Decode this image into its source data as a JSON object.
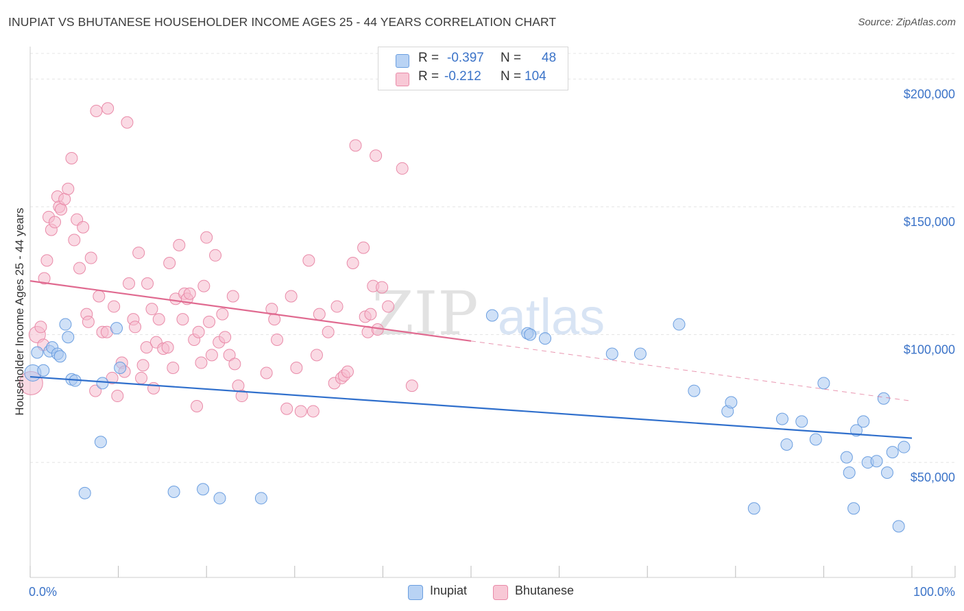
{
  "title": "INUPIAT VS BHUTANESE HOUSEHOLDER INCOME AGES 25 - 44 YEARS CORRELATION CHART",
  "source": "Source: ZipAtlas.com",
  "watermark": {
    "zip": "ZIP",
    "atlas": "atlas"
  },
  "legend": {
    "r_label": "R =",
    "n_label": "N =",
    "rows": [
      {
        "name": "Inupiat",
        "r": "-0.397",
        "n": "48"
      },
      {
        "name": "Bhutanese",
        "r": "-0.212",
        "n": "104"
      }
    ]
  },
  "colors": {
    "inupiat_fill": "#a9c8f0",
    "inupiat_stroke": "#6a9ee0",
    "inupiat_line": "#2f6fcc",
    "bhutanese_fill": "#f6bccd",
    "bhutanese_stroke": "#e98aa8",
    "bhutanese_line": "#e06a90",
    "tick_text": "#3b73c8",
    "grid": "#e4e4e4"
  },
  "chart_data": {
    "type": "scatter",
    "title": "INUPIAT VS BHUTANESE HOUSEHOLDER INCOME AGES 25 - 44 YEARS CORRELATION CHART",
    "xlabel": "",
    "ylabel": "Householder Income Ages 25 - 44 years",
    "xlim": [
      0,
      100
    ],
    "ylim": [
      5000,
      210000
    ],
    "x_tick_labels": [
      "0.0%",
      "100.0%"
    ],
    "y_ticks": [
      50000,
      100000,
      150000,
      200000
    ],
    "y_tick_labels": [
      "$50,000",
      "$100,000",
      "$150,000",
      "$200,000"
    ],
    "grid": true,
    "legend_position": "bottom",
    "series": [
      {
        "name": "Inupiat",
        "trend": {
          "x": [
            0,
            100
          ],
          "y": [
            83500,
            59500
          ],
          "solid_to": 100
        },
        "points": [
          [
            0.3,
            85000
          ],
          [
            1.5,
            86000
          ],
          [
            0.8,
            93000
          ],
          [
            2.2,
            93500
          ],
          [
            2.5,
            95000
          ],
          [
            3.1,
            92500
          ],
          [
            3.4,
            91500
          ],
          [
            4.0,
            104000
          ],
          [
            4.3,
            99000
          ],
          [
            4.7,
            82500
          ],
          [
            5.1,
            82000
          ],
          [
            6.2,
            38000
          ],
          [
            8.0,
            58000
          ],
          [
            8.2,
            81000
          ],
          [
            9.8,
            102500
          ],
          [
            10.2,
            87000
          ],
          [
            16.3,
            38500
          ],
          [
            19.6,
            39500
          ],
          [
            21.5,
            36000
          ],
          [
            26.2,
            36000
          ],
          [
            52.4,
            107500
          ],
          [
            56.4,
            100500
          ],
          [
            56.7,
            100000
          ],
          [
            58.4,
            98500
          ],
          [
            66.0,
            92500
          ],
          [
            69.2,
            92500
          ],
          [
            73.6,
            104000
          ],
          [
            75.3,
            78000
          ],
          [
            79.1,
            70000
          ],
          [
            79.5,
            73500
          ],
          [
            82.1,
            32000
          ],
          [
            85.3,
            67000
          ],
          [
            85.8,
            57000
          ],
          [
            87.5,
            66000
          ],
          [
            89.1,
            59000
          ],
          [
            90.0,
            81000
          ],
          [
            92.6,
            52000
          ],
          [
            92.9,
            46000
          ],
          [
            93.4,
            32000
          ],
          [
            93.7,
            62500
          ],
          [
            94.5,
            66000
          ],
          [
            95.0,
            50000
          ],
          [
            96.0,
            50500
          ],
          [
            96.8,
            75000
          ],
          [
            97.2,
            46000
          ],
          [
            97.8,
            54000
          ],
          [
            98.5,
            25000
          ],
          [
            99.1,
            56000
          ]
        ]
      },
      {
        "name": "Bhutanese",
        "trend": {
          "x": [
            0,
            100
          ],
          "y": [
            121000,
            74000
          ],
          "solid_to": 50
        },
        "points": [
          [
            0.1,
            81000
          ],
          [
            0.8,
            100000
          ],
          [
            1.2,
            103000
          ],
          [
            1.5,
            96000
          ],
          [
            1.6,
            122000
          ],
          [
            1.9,
            129000
          ],
          [
            2.1,
            146000
          ],
          [
            2.4,
            141000
          ],
          [
            2.8,
            144000
          ],
          [
            3.1,
            154000
          ],
          [
            3.3,
            150000
          ],
          [
            3.5,
            149000
          ],
          [
            3.9,
            153000
          ],
          [
            4.3,
            157000
          ],
          [
            4.7,
            169000
          ],
          [
            5.0,
            137000
          ],
          [
            5.3,
            145000
          ],
          [
            5.6,
            126000
          ],
          [
            6.0,
            142000
          ],
          [
            6.4,
            108000
          ],
          [
            6.6,
            105000
          ],
          [
            6.9,
            130000
          ],
          [
            7.4,
            78000
          ],
          [
            7.8,
            115000
          ],
          [
            7.5,
            187500
          ],
          [
            8.2,
            101000
          ],
          [
            8.7,
            101000
          ],
          [
            8.8,
            188500
          ],
          [
            9.3,
            83000
          ],
          [
            9.5,
            111000
          ],
          [
            9.9,
            76000
          ],
          [
            10.4,
            89000
          ],
          [
            10.7,
            85500
          ],
          [
            11.0,
            183000
          ],
          [
            11.2,
            120000
          ],
          [
            11.7,
            106000
          ],
          [
            11.9,
            103000
          ],
          [
            12.3,
            132000
          ],
          [
            12.6,
            83000
          ],
          [
            12.8,
            88000
          ],
          [
            13.2,
            95000
          ],
          [
            13.3,
            120000
          ],
          [
            13.8,
            110000
          ],
          [
            14.0,
            79000
          ],
          [
            14.3,
            97000
          ],
          [
            14.6,
            106000
          ],
          [
            15.1,
            94500
          ],
          [
            15.6,
            95000
          ],
          [
            15.8,
            128000
          ],
          [
            16.2,
            87000
          ],
          [
            16.5,
            114000
          ],
          [
            16.9,
            135000
          ],
          [
            17.3,
            106000
          ],
          [
            17.5,
            116000
          ],
          [
            17.8,
            114000
          ],
          [
            18.1,
            116000
          ],
          [
            18.6,
            98000
          ],
          [
            18.9,
            72000
          ],
          [
            19.1,
            101000
          ],
          [
            19.4,
            89000
          ],
          [
            19.7,
            119000
          ],
          [
            20.0,
            138000
          ],
          [
            20.3,
            105000
          ],
          [
            20.6,
            92000
          ],
          [
            21.0,
            131000
          ],
          [
            21.4,
            97000
          ],
          [
            21.8,
            108000
          ],
          [
            22.1,
            99000
          ],
          [
            22.6,
            92000
          ],
          [
            23.0,
            115000
          ],
          [
            23.2,
            88500
          ],
          [
            23.6,
            80000
          ],
          [
            24.0,
            76000
          ],
          [
            26.8,
            85000
          ],
          [
            27.4,
            110000
          ],
          [
            27.7,
            106000
          ],
          [
            28.0,
            98000
          ],
          [
            29.1,
            71000
          ],
          [
            29.6,
            115000
          ],
          [
            30.2,
            87000
          ],
          [
            30.7,
            70000
          ],
          [
            31.6,
            129000
          ],
          [
            32.1,
            70000
          ],
          [
            32.5,
            92000
          ],
          [
            32.8,
            108000
          ],
          [
            33.8,
            101000
          ],
          [
            34.5,
            81000
          ],
          [
            34.8,
            111000
          ],
          [
            35.3,
            83000
          ],
          [
            35.6,
            84000
          ],
          [
            36.0,
            85500
          ],
          [
            36.6,
            128000
          ],
          [
            36.9,
            174000
          ],
          [
            37.8,
            134000
          ],
          [
            38.0,
            107000
          ],
          [
            38.3,
            101000
          ],
          [
            38.6,
            108000
          ],
          [
            38.9,
            119000
          ],
          [
            39.2,
            170000
          ],
          [
            39.4,
            102000
          ],
          [
            39.9,
            118500
          ],
          [
            40.6,
            111000
          ],
          [
            42.2,
            165000
          ],
          [
            43.3,
            80000
          ]
        ]
      }
    ]
  },
  "axis_labels": {
    "x_min": "0.0%",
    "x_max": "100.0%"
  }
}
